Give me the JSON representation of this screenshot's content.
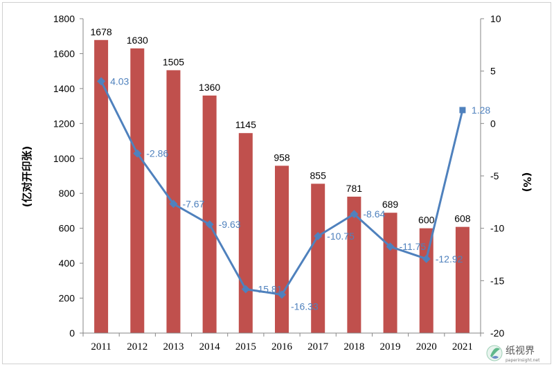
{
  "chart_data": {
    "type": "bar",
    "categories": [
      "2011",
      "2012",
      "2013",
      "2014",
      "2015",
      "2016",
      "2017",
      "2018",
      "2019",
      "2020",
      "2021"
    ],
    "series": [
      {
        "type": "bar",
        "axis": "left",
        "values": [
          1678,
          1630,
          1505,
          1360,
          1145,
          958,
          855,
          781,
          689,
          600,
          608
        ]
      },
      {
        "type": "line",
        "axis": "right",
        "values": [
          4.03,
          -2.86,
          -7.67,
          -9.63,
          -15.81,
          -16.33,
          -10.75,
          -8.64,
          -11.75,
          -12.92,
          1.28
        ],
        "labels": [
          "4.03",
          "-2.86",
          "-7.67",
          "-9.63",
          "-15.81",
          "-16.33",
          "-10.75",
          "-8.64",
          "-11.75",
          "-12.92",
          "1.28"
        ]
      }
    ],
    "ylabel": "(亿对开印张)",
    "y2label": "(%)",
    "ylim": [
      0,
      1800
    ],
    "yticks": [
      0,
      200,
      400,
      600,
      800,
      1000,
      1200,
      1400,
      1600,
      1800
    ],
    "y2lim": [
      -20,
      10
    ],
    "y2ticks": [
      -20,
      -15,
      -10,
      -5,
      0,
      5,
      10
    ],
    "grid": false,
    "colors": {
      "bar": "#c0504d",
      "line": "#4f81bd",
      "line_label": "#4f81bd"
    }
  },
  "watermark": {
    "text": "纸视界",
    "subtext": "paperinsight.net"
  }
}
